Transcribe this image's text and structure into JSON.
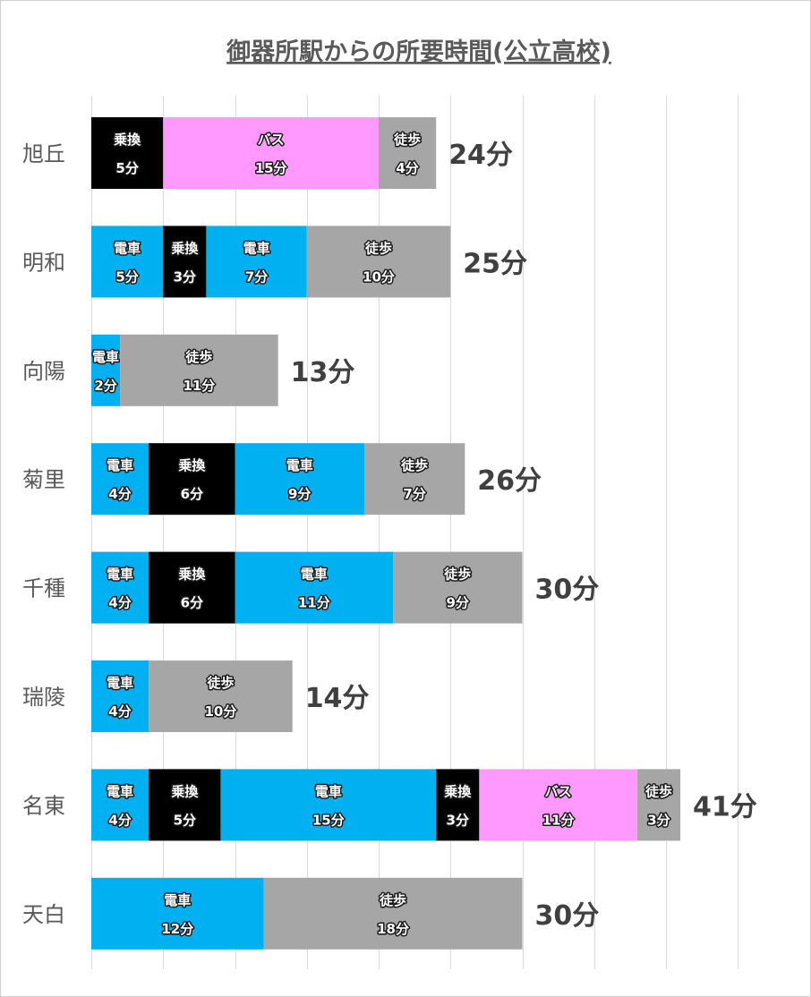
{
  "colors": {
    "電車": "#00b0f0",
    "乗換": "#000000",
    "バス": "#ff99ff",
    "徒歩": "#a6a6a6",
    "grid": "#d9d9d9",
    "title": "#5a5a5a",
    "total": "#404040"
  },
  "chart_data": {
    "type": "bar",
    "orientation": "horizontal",
    "stacked": true,
    "title": "御器所駅からの所要時間(公立高校)",
    "xlim": [
      0,
      45
    ],
    "grid": true,
    "categories": [
      "旭丘",
      "明和",
      "向陽",
      "菊里",
      "千種",
      "瑞陵",
      "名東",
      "天白"
    ],
    "rows": [
      {
        "category": "旭丘",
        "total_label": "24分",
        "segments": [
          {
            "mode": "乗換",
            "minutes": 5,
            "value_label": "5分"
          },
          {
            "mode": "バス",
            "minutes": 15,
            "value_label": "15分"
          },
          {
            "mode": "徒歩",
            "minutes": 4,
            "value_label": "4分"
          }
        ]
      },
      {
        "category": "明和",
        "total_label": "25分",
        "segments": [
          {
            "mode": "電車",
            "minutes": 5,
            "value_label": "5分"
          },
          {
            "mode": "乗換",
            "minutes": 3,
            "value_label": "3分"
          },
          {
            "mode": "電車",
            "minutes": 7,
            "value_label": "7分"
          },
          {
            "mode": "徒歩",
            "minutes": 10,
            "value_label": "10分"
          }
        ]
      },
      {
        "category": "向陽",
        "total_label": "13分",
        "segments": [
          {
            "mode": "電車",
            "minutes": 2,
            "value_label": "2分"
          },
          {
            "mode": "徒歩",
            "minutes": 11,
            "value_label": "11分"
          }
        ]
      },
      {
        "category": "菊里",
        "total_label": "26分",
        "segments": [
          {
            "mode": "電車",
            "minutes": 4,
            "value_label": "4分"
          },
          {
            "mode": "乗換",
            "minutes": 6,
            "value_label": "6分"
          },
          {
            "mode": "電車",
            "minutes": 9,
            "value_label": "9分"
          },
          {
            "mode": "徒歩",
            "minutes": 7,
            "value_label": "7分"
          }
        ]
      },
      {
        "category": "千種",
        "total_label": "30分",
        "segments": [
          {
            "mode": "電車",
            "minutes": 4,
            "value_label": "4分"
          },
          {
            "mode": "乗換",
            "minutes": 6,
            "value_label": "6分"
          },
          {
            "mode": "電車",
            "minutes": 11,
            "value_label": "11分"
          },
          {
            "mode": "徒歩",
            "minutes": 9,
            "value_label": "9分"
          }
        ]
      },
      {
        "category": "瑞陵",
        "total_label": "14分",
        "segments": [
          {
            "mode": "電車",
            "minutes": 4,
            "value_label": "4分"
          },
          {
            "mode": "徒歩",
            "minutes": 10,
            "value_label": "10分"
          }
        ]
      },
      {
        "category": "名東",
        "total_label": "41分",
        "segments": [
          {
            "mode": "電車",
            "minutes": 4,
            "value_label": "4分"
          },
          {
            "mode": "乗換",
            "minutes": 5,
            "value_label": "5分"
          },
          {
            "mode": "電車",
            "minutes": 15,
            "value_label": "15分"
          },
          {
            "mode": "乗換",
            "minutes": 3,
            "value_label": "3分"
          },
          {
            "mode": "バス",
            "minutes": 11,
            "value_label": "11分"
          },
          {
            "mode": "徒歩",
            "minutes": 3,
            "value_label": "3分"
          }
        ]
      },
      {
        "category": "天白",
        "total_label": "30分",
        "segments": [
          {
            "mode": "電車",
            "minutes": 12,
            "value_label": "12分"
          },
          {
            "mode": "徒歩",
            "minutes": 18,
            "value_label": "18分"
          }
        ]
      }
    ]
  }
}
